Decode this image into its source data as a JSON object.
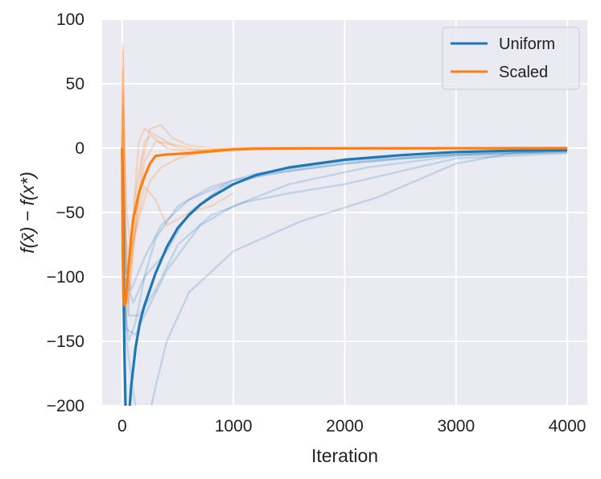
{
  "chart_data": {
    "type": "line",
    "title": "",
    "xlabel": "Iteration",
    "ylabel": "f(x̄) − f(x*)",
    "xlim": [
      -180,
      4180
    ],
    "ylim": [
      -200,
      100
    ],
    "xticks": [
      0,
      1000,
      2000,
      3000,
      4000
    ],
    "yticks": [
      100,
      50,
      0,
      -50,
      -100,
      -150,
      -200
    ],
    "xtick_labels": [
      "0",
      "1000",
      "2000",
      "3000",
      "4000"
    ],
    "ytick_labels": [
      "100",
      "50",
      "0",
      "−50",
      "−100",
      "−150",
      "−200"
    ],
    "grid": true,
    "legend_position": "top-right",
    "series": [
      {
        "name": "Uniform",
        "color": "#1f77b4",
        "x": [
          0,
          10,
          20,
          30,
          40,
          60,
          80,
          120,
          160,
          200,
          300,
          400,
          500,
          600,
          700,
          800,
          1000,
          1200,
          1500,
          2000,
          2500,
          3000,
          3500,
          4000
        ],
        "values": [
          0,
          -100,
          -160,
          -200,
          -220,
          -210,
          -185,
          -155,
          -135,
          -122,
          -97,
          -77,
          -62,
          -52,
          -44,
          -38,
          -28,
          -21,
          -15,
          -9,
          -5.5,
          -3,
          -2,
          -1.5
        ]
      },
      {
        "name": "Scaled",
        "color": "#ff7f0e",
        "x": [
          0,
          5,
          10,
          20,
          30,
          40,
          60,
          80,
          100,
          150,
          200,
          250,
          300,
          400,
          500,
          600,
          800,
          1000,
          1200,
          1500,
          2000,
          3000,
          4000
        ],
        "values": [
          0,
          -80,
          -115,
          -122,
          -120,
          -110,
          -90,
          -70,
          -55,
          -35,
          -22,
          -12,
          -6,
          -5,
          -4.5,
          -4,
          -2.5,
          -1,
          -0.5,
          -0.3,
          -0.2,
          -0.1,
          0
        ]
      }
    ],
    "background_runs": [
      {
        "color": "#1f77b4",
        "x": [
          0,
          20,
          60,
          120,
          200,
          300,
          500,
          800,
          1200,
          2000,
          3000,
          4000
        ],
        "values": [
          0,
          -120,
          -150,
          -135,
          -100,
          -70,
          -45,
          -30,
          -20,
          -10,
          -5,
          -3
        ]
      },
      {
        "color": "#1f77b4",
        "x": [
          0,
          40,
          100,
          180,
          250,
          300,
          400,
          600,
          1000,
          1600,
          2300,
          3000,
          3500,
          4000
        ],
        "values": [
          0,
          -150,
          -190,
          -230,
          -205,
          -185,
          -150,
          -112,
          -80,
          -57,
          -38,
          -12,
          -4,
          -2
        ]
      },
      {
        "color": "#1f77b4",
        "x": [
          0,
          30,
          120,
          200,
          400,
          700,
          1000,
          1500,
          2200,
          3000,
          4000
        ],
        "values": [
          0,
          -140,
          -145,
          -130,
          -95,
          -60,
          -45,
          -28,
          -15,
          -6,
          -3
        ]
      },
      {
        "color": "#1f77b4",
        "x": [
          0,
          60,
          150,
          300,
          500,
          800,
          1100,
          1500,
          2000,
          2500,
          3000,
          4000
        ],
        "values": [
          0,
          -130,
          -130,
          -110,
          -75,
          -52,
          -42,
          -35,
          -28,
          -18,
          -8,
          -4
        ]
      },
      {
        "color": "#1f77b4",
        "x": [
          0,
          20,
          80,
          200,
          350,
          600,
          1000,
          1500,
          2000,
          2500,
          3000,
          3500,
          4000
        ],
        "values": [
          0,
          -90,
          -110,
          -85,
          -60,
          -40,
          -25,
          -18,
          -12,
          -8,
          -5,
          -3,
          -2
        ]
      },
      {
        "color": "#1f77b4",
        "x": [
          0,
          20,
          100,
          200,
          400,
          600,
          900,
          1300,
          2000,
          3000,
          4000
        ],
        "values": [
          0,
          -100,
          -120,
          -100,
          -80,
          -50,
          -30,
          -20,
          -12,
          -5,
          -2
        ]
      },
      {
        "color": "#ff7f0e",
        "x": [
          0,
          5,
          20,
          50,
          100,
          150,
          200,
          300,
          400,
          500,
          700,
          1000,
          1500,
          4000
        ],
        "values": [
          0,
          80,
          -60,
          -100,
          -50,
          5,
          15,
          10,
          5,
          0,
          -2,
          -1,
          0,
          0
        ]
      },
      {
        "color": "#ff7f0e",
        "x": [
          0,
          8,
          25,
          60,
          120,
          180,
          250,
          350,
          450,
          600,
          900,
          1200,
          4000
        ],
        "values": [
          0,
          75,
          -90,
          -120,
          -60,
          -10,
          15,
          18,
          8,
          2,
          -1,
          0,
          0
        ]
      },
      {
        "color": "#ff7f0e",
        "x": [
          0,
          10,
          30,
          60,
          100,
          200,
          300,
          400,
          500,
          600,
          800,
          1000
        ],
        "values": [
          0,
          45,
          -80,
          -110,
          -70,
          -30,
          -40,
          -60,
          -55,
          -50,
          -45,
          -35
        ]
      },
      {
        "color": "#ff7f0e",
        "x": [
          0,
          10,
          30,
          80,
          150,
          200,
          300,
          450,
          600,
          800,
          1000,
          1300,
          4000
        ],
        "values": [
          0,
          40,
          -70,
          -90,
          -40,
          -10,
          5,
          3,
          0,
          -2,
          -1,
          0,
          0
        ]
      },
      {
        "color": "#ff7f0e",
        "x": [
          0,
          10,
          40,
          80,
          150,
          250,
          350,
          500,
          700,
          900,
          1100,
          4000
        ],
        "values": [
          0,
          30,
          -50,
          -80,
          -55,
          -25,
          -15,
          -8,
          -3,
          -1,
          0,
          0
        ]
      },
      {
        "color": "#ff7f0e",
        "x": [
          0,
          5,
          20,
          40,
          80,
          120,
          200,
          260,
          400,
          600,
          900,
          4000
        ],
        "values": [
          0,
          60,
          -100,
          -130,
          -80,
          -35,
          5,
          10,
          0,
          -3,
          0,
          0
        ]
      }
    ]
  }
}
